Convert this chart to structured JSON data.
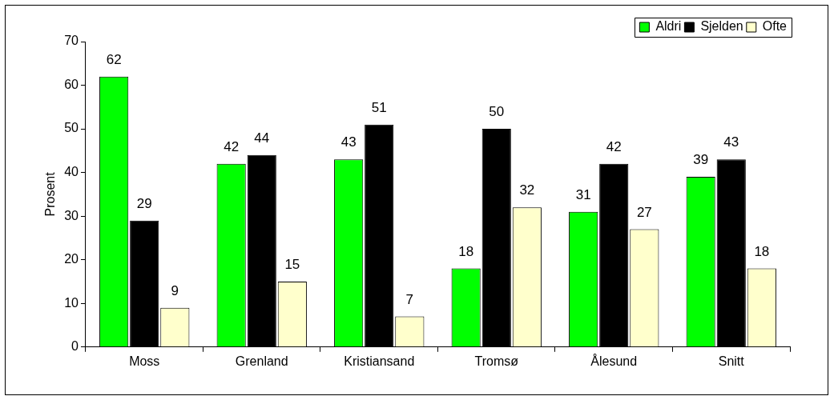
{
  "chart_data": {
    "type": "bar",
    "ylabel": "Prosent",
    "categories": [
      "Moss",
      "Grenland",
      "Kristiansand",
      "Tromsø",
      "Ålesund",
      "Snitt"
    ],
    "series": [
      {
        "name": "Aldri",
        "color": "#00ff00",
        "values": [
          62,
          42,
          43,
          18,
          31,
          39
        ]
      },
      {
        "name": "Sjelden",
        "color": "#000000",
        "values": [
          29,
          44,
          51,
          50,
          42,
          43
        ]
      },
      {
        "name": "Ofte",
        "color": "#ffffcc",
        "values": [
          9,
          15,
          7,
          32,
          27,
          18
        ]
      }
    ],
    "ylim": [
      0,
      70
    ],
    "yticks": [
      0,
      10,
      20,
      30,
      40,
      50,
      60,
      70
    ],
    "grid": false,
    "legend": "top right",
    "data_labels": true
  }
}
